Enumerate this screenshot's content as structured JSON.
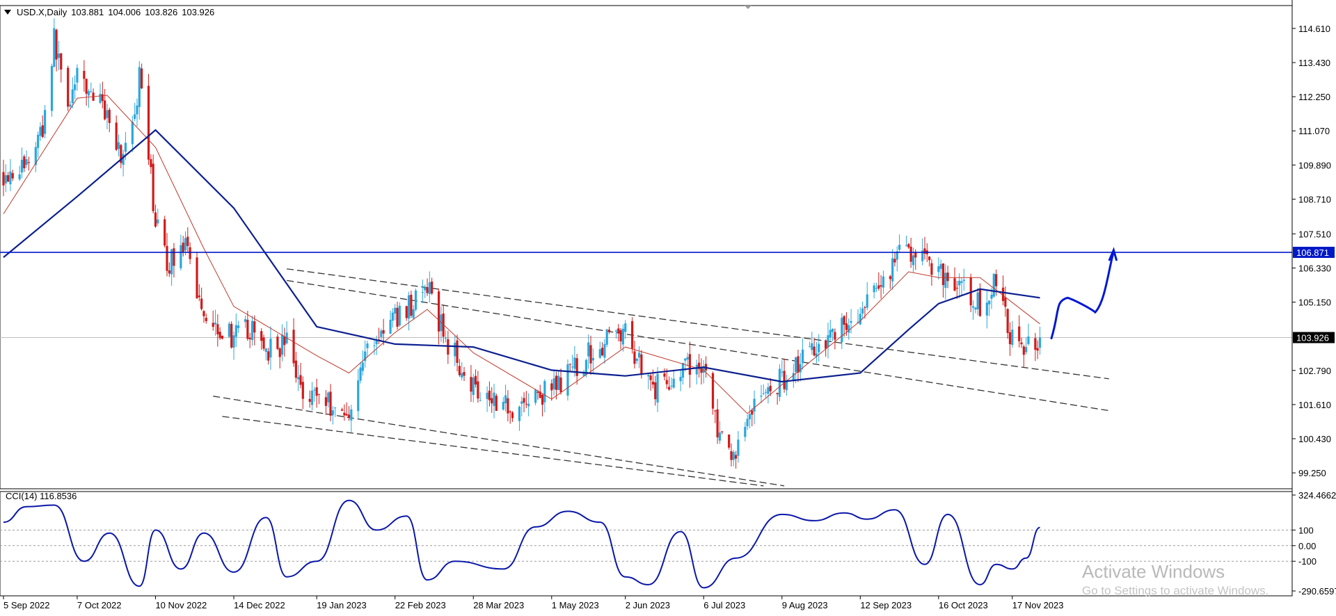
{
  "header": {
    "symbol": "USD.X,Daily",
    "open": "103.881",
    "high": "104.006",
    "low": "103.826",
    "close": "103.926"
  },
  "colors": {
    "background": "#ffffff",
    "bull_candle": "#2aa7dd",
    "bear_candle": "#d11a1a",
    "ma_fast": "#c0392b",
    "ma_slow": "#0b1f8f",
    "h_line": "#0018c7",
    "price_tag_bg": "#0018c7",
    "close_tag_bg": "#000000",
    "cci_line": "#0a17a8",
    "hand_drawn": "#0018d4",
    "channel": "#333333"
  },
  "price_axis": {
    "labels": [
      "114.610",
      "113.430",
      "112.250",
      "111.070",
      "109.890",
      "108.710",
      "107.510",
      "106.330",
      "105.150",
      "102.790",
      "101.610",
      "100.430",
      "99.250"
    ],
    "level_label": "106.871",
    "close_label": "103.926"
  },
  "indicator": {
    "label": "CCI(14) 116.8536",
    "axis_labels": [
      "324.4662",
      "100",
      "0.00",
      "-100",
      "-290.6597"
    ]
  },
  "date_axis": [
    "5 Sep 2022",
    "7 Oct 2022",
    "10 Nov 2022",
    "14 Dec 2022",
    "19 Jan 2023",
    "22 Feb 2023",
    "28 Mar 2023",
    "1 May 2023",
    "2 Jun 2023",
    "6 Jul 2023",
    "9 Aug 2023",
    "12 Sep 2023",
    "16 Oct 2023",
    "17 Nov 2023"
  ],
  "watermark": {
    "title": "Activate Windows",
    "subtitle": "Go to Settings to activate Windows."
  },
  "chart_data": {
    "type": "candlestick",
    "x_range": [
      "5 Sep 2022",
      "29 Nov 2023"
    ],
    "y_range": [
      98.7,
      115.4
    ],
    "horizontal_level": 106.871,
    "last_close": 103.926,
    "close_path": [
      {
        "d": "5 Sep 2022",
        "v": 109.6
      },
      {
        "d": "15 Sep 2022",
        "v": 109.9
      },
      {
        "d": "22 Sep 2022",
        "v": 111.2
      },
      {
        "d": "27 Sep 2022",
        "v": 114.2
      },
      {
        "d": "3 Oct 2022",
        "v": 112.1
      },
      {
        "d": "7 Oct 2022",
        "v": 112.8
      },
      {
        "d": "13 Oct 2022",
        "v": 112.4
      },
      {
        "d": "21 Oct 2022",
        "v": 111.6
      },
      {
        "d": "26 Oct 2022",
        "v": 110.2
      },
      {
        "d": "2 Nov 2022",
        "v": 111.6
      },
      {
        "d": "3 Nov 2022",
        "v": 112.9
      },
      {
        "d": "10 Nov 2022",
        "v": 108.0
      },
      {
        "d": "15 Nov 2022",
        "v": 106.4
      },
      {
        "d": "22 Nov 2022",
        "v": 107.2
      },
      {
        "d": "1 Dec 2022",
        "v": 104.8
      },
      {
        "d": "14 Dec 2022",
        "v": 103.9
      },
      {
        "d": "20 Dec 2022",
        "v": 104.2
      },
      {
        "d": "30 Dec 2022",
        "v": 103.5
      },
      {
        "d": "6 Jan 2023",
        "v": 103.8
      },
      {
        "d": "12 Jan 2023",
        "v": 102.2
      },
      {
        "d": "19 Jan 2023",
        "v": 102.0
      },
      {
        "d": "1 Feb 2023",
        "v": 101.2
      },
      {
        "d": "10 Feb 2023",
        "v": 103.6
      },
      {
        "d": "22 Feb 2023",
        "v": 104.6
      },
      {
        "d": "8 Mar 2023",
        "v": 105.6
      },
      {
        "d": "17 Mar 2023",
        "v": 103.7
      },
      {
        "d": "28 Mar 2023",
        "v": 102.3
      },
      {
        "d": "14 Apr 2023",
        "v": 101.5
      },
      {
        "d": "1 May 2023",
        "v": 102.1
      },
      {
        "d": "18 May 2023",
        "v": 103.4
      },
      {
        "d": "31 May 2023",
        "v": 104.2
      },
      {
        "d": "2 Jun 2023",
        "v": 104.0
      },
      {
        "d": "15 Jun 2023",
        "v": 102.2
      },
      {
        "d": "30 Jun 2023",
        "v": 102.9
      },
      {
        "d": "6 Jul 2023",
        "v": 103.0
      },
      {
        "d": "13 Jul 2023",
        "v": 100.4
      },
      {
        "d": "18 Jul 2023",
        "v": 99.6
      },
      {
        "d": "27 Jul 2023",
        "v": 101.6
      },
      {
        "d": "9 Aug 2023",
        "v": 102.5
      },
      {
        "d": "22 Aug 2023",
        "v": 103.6
      },
      {
        "d": "1 Sep 2023",
        "v": 104.2
      },
      {
        "d": "12 Sep 2023",
        "v": 104.6
      },
      {
        "d": "27 Sep 2023",
        "v": 106.6
      },
      {
        "d": "3 Oct 2023",
        "v": 107.0
      },
      {
        "d": "16 Oct 2023",
        "v": 106.3
      },
      {
        "d": "3 Nov 2023",
        "v": 105.0
      },
      {
        "d": "10 Nov 2023",
        "v": 105.9
      },
      {
        "d": "17 Nov 2023",
        "v": 103.8
      },
      {
        "d": "21 Nov 2023",
        "v": 103.3
      },
      {
        "d": "23 Nov 2023",
        "v": 103.9
      },
      {
        "d": "29 Nov 2023",
        "v": 103.9
      }
    ],
    "ma_fast": [
      {
        "d": "5 Sep 2022",
        "v": 108.2
      },
      {
        "d": "7 Oct 2022",
        "v": 112.2
      },
      {
        "d": "20 Oct 2022",
        "v": 112.3
      },
      {
        "d": "10 Nov 2022",
        "v": 110.5
      },
      {
        "d": "1 Dec 2022",
        "v": 107.0
      },
      {
        "d": "14 Dec 2022",
        "v": 105.0
      },
      {
        "d": "19 Jan 2023",
        "v": 103.3
      },
      {
        "d": "2 Feb 2023",
        "v": 102.7
      },
      {
        "d": "22 Feb 2023",
        "v": 104.1
      },
      {
        "d": "8 Mar 2023",
        "v": 104.9
      },
      {
        "d": "28 Mar 2023",
        "v": 103.4
      },
      {
        "d": "1 May 2023",
        "v": 101.8
      },
      {
        "d": "2 Jun 2023",
        "v": 103.6
      },
      {
        "d": "15 Jun 2023",
        "v": 103.3
      },
      {
        "d": "6 Jul 2023",
        "v": 102.8
      },
      {
        "d": "25 Jul 2023",
        "v": 101.3
      },
      {
        "d": "9 Aug 2023",
        "v": 102.3
      },
      {
        "d": "12 Sep 2023",
        "v": 104.5
      },
      {
        "d": "3 Oct 2023",
        "v": 106.2
      },
      {
        "d": "16 Oct 2023",
        "v": 106.0
      },
      {
        "d": "3 Nov 2023",
        "v": 106.0
      },
      {
        "d": "29 Nov 2023",
        "v": 104.4
      }
    ],
    "ma_slow": [
      {
        "d": "5 Sep 2022",
        "v": 106.7
      },
      {
        "d": "7 Oct 2022",
        "v": 108.8
      },
      {
        "d": "10 Nov 2022",
        "v": 111.1
      },
      {
        "d": "14 Dec 2022",
        "v": 108.4
      },
      {
        "d": "19 Jan 2023",
        "v": 104.3
      },
      {
        "d": "22 Feb 2023",
        "v": 103.7
      },
      {
        "d": "28 Mar 2023",
        "v": 103.6
      },
      {
        "d": "1 May 2023",
        "v": 102.8
      },
      {
        "d": "2 Jun 2023",
        "v": 102.6
      },
      {
        "d": "6 Jul 2023",
        "v": 102.9
      },
      {
        "d": "9 Aug 2023",
        "v": 102.4
      },
      {
        "d": "12 Sep 2023",
        "v": 102.7
      },
      {
        "d": "3 Oct 2023",
        "v": 104.2
      },
      {
        "d": "16 Oct 2023",
        "v": 105.1
      },
      {
        "d": "3 Nov 2023",
        "v": 105.6
      },
      {
        "d": "29 Nov 2023",
        "v": 105.3
      }
    ],
    "channel_lines": [
      {
        "from": {
          "d": "6 Jan 2023",
          "v": 106.3
        },
        "to": {
          "d": "29 Dec 2023",
          "v": 102.5
        }
      },
      {
        "from": {
          "d": "6 Jan 2023",
          "v": 105.9
        },
        "to": {
          "d": "29 Dec 2023",
          "v": 101.4
        }
      },
      {
        "from": {
          "d": "5 Dec 2022",
          "v": 101.9
        },
        "to": {
          "d": "10 Aug 2023",
          "v": 98.8
        }
      },
      {
        "from": {
          "d": "9 Dec 2022",
          "v": 101.2
        },
        "to": {
          "d": "1 Aug 2023",
          "v": 98.8
        }
      }
    ],
    "hand_drawn_forecast": [
      {
        "d": "4 Dec 2023",
        "v": 103.9
      },
      {
        "d": "11 Dec 2023",
        "v": 105.3
      },
      {
        "d": "23 Dec 2023",
        "v": 104.8
      },
      {
        "d": "31 Dec 2023",
        "v": 106.9
      }
    ],
    "cci": {
      "name": "CCI(14)",
      "last": 116.8536,
      "range": [
        -290.6597,
        324.4662
      ],
      "path": [
        {
          "d": "5 Sep 2022",
          "v": 150
        },
        {
          "d": "15 Sep 2022",
          "v": 250
        },
        {
          "d": "27 Sep 2022",
          "v": 260
        },
        {
          "d": "10 Oct 2022",
          "v": -100
        },
        {
          "d": "21 Oct 2022",
          "v": 80
        },
        {
          "d": "3 Nov 2022",
          "v": -260
        },
        {
          "d": "10 Nov 2022",
          "v": 100
        },
        {
          "d": "21 Nov 2022",
          "v": -150
        },
        {
          "d": "1 Dec 2022",
          "v": 80
        },
        {
          "d": "14 Dec 2022",
          "v": -170
        },
        {
          "d": "28 Dec 2022",
          "v": 180
        },
        {
          "d": "6 Jan 2023",
          "v": -200
        },
        {
          "d": "19 Jan 2023",
          "v": -100
        },
        {
          "d": "2 Feb 2023",
          "v": 290
        },
        {
          "d": "14 Feb 2023",
          "v": 100
        },
        {
          "d": "27 Feb 2023",
          "v": 190
        },
        {
          "d": "8 Mar 2023",
          "v": -220
        },
        {
          "d": "20 Mar 2023",
          "v": -100
        },
        {
          "d": "10 Apr 2023",
          "v": -150
        },
        {
          "d": "24 Apr 2023",
          "v": 120
        },
        {
          "d": "8 May 2023",
          "v": 220
        },
        {
          "d": "22 May 2023",
          "v": 150
        },
        {
          "d": "2 Jun 2023",
          "v": -200
        },
        {
          "d": "12 Jun 2023",
          "v": -250
        },
        {
          "d": "26 Jun 2023",
          "v": 90
        },
        {
          "d": "6 Jul 2023",
          "v": -270
        },
        {
          "d": "20 Jul 2023",
          "v": -80
        },
        {
          "d": "9 Aug 2023",
          "v": 200
        },
        {
          "d": "23 Aug 2023",
          "v": 160
        },
        {
          "d": "5 Sep 2023",
          "v": 210
        },
        {
          "d": "15 Sep 2023",
          "v": 170
        },
        {
          "d": "27 Sep 2023",
          "v": 230
        },
        {
          "d": "10 Oct 2023",
          "v": -120
        },
        {
          "d": "20 Oct 2023",
          "v": 200
        },
        {
          "d": "3 Nov 2023",
          "v": -250
        },
        {
          "d": "10 Nov 2023",
          "v": -120
        },
        {
          "d": "17 Nov 2023",
          "v": -150
        },
        {
          "d": "23 Nov 2023",
          "v": -80
        },
        {
          "d": "29 Nov 2023",
          "v": 116.85
        }
      ]
    }
  }
}
